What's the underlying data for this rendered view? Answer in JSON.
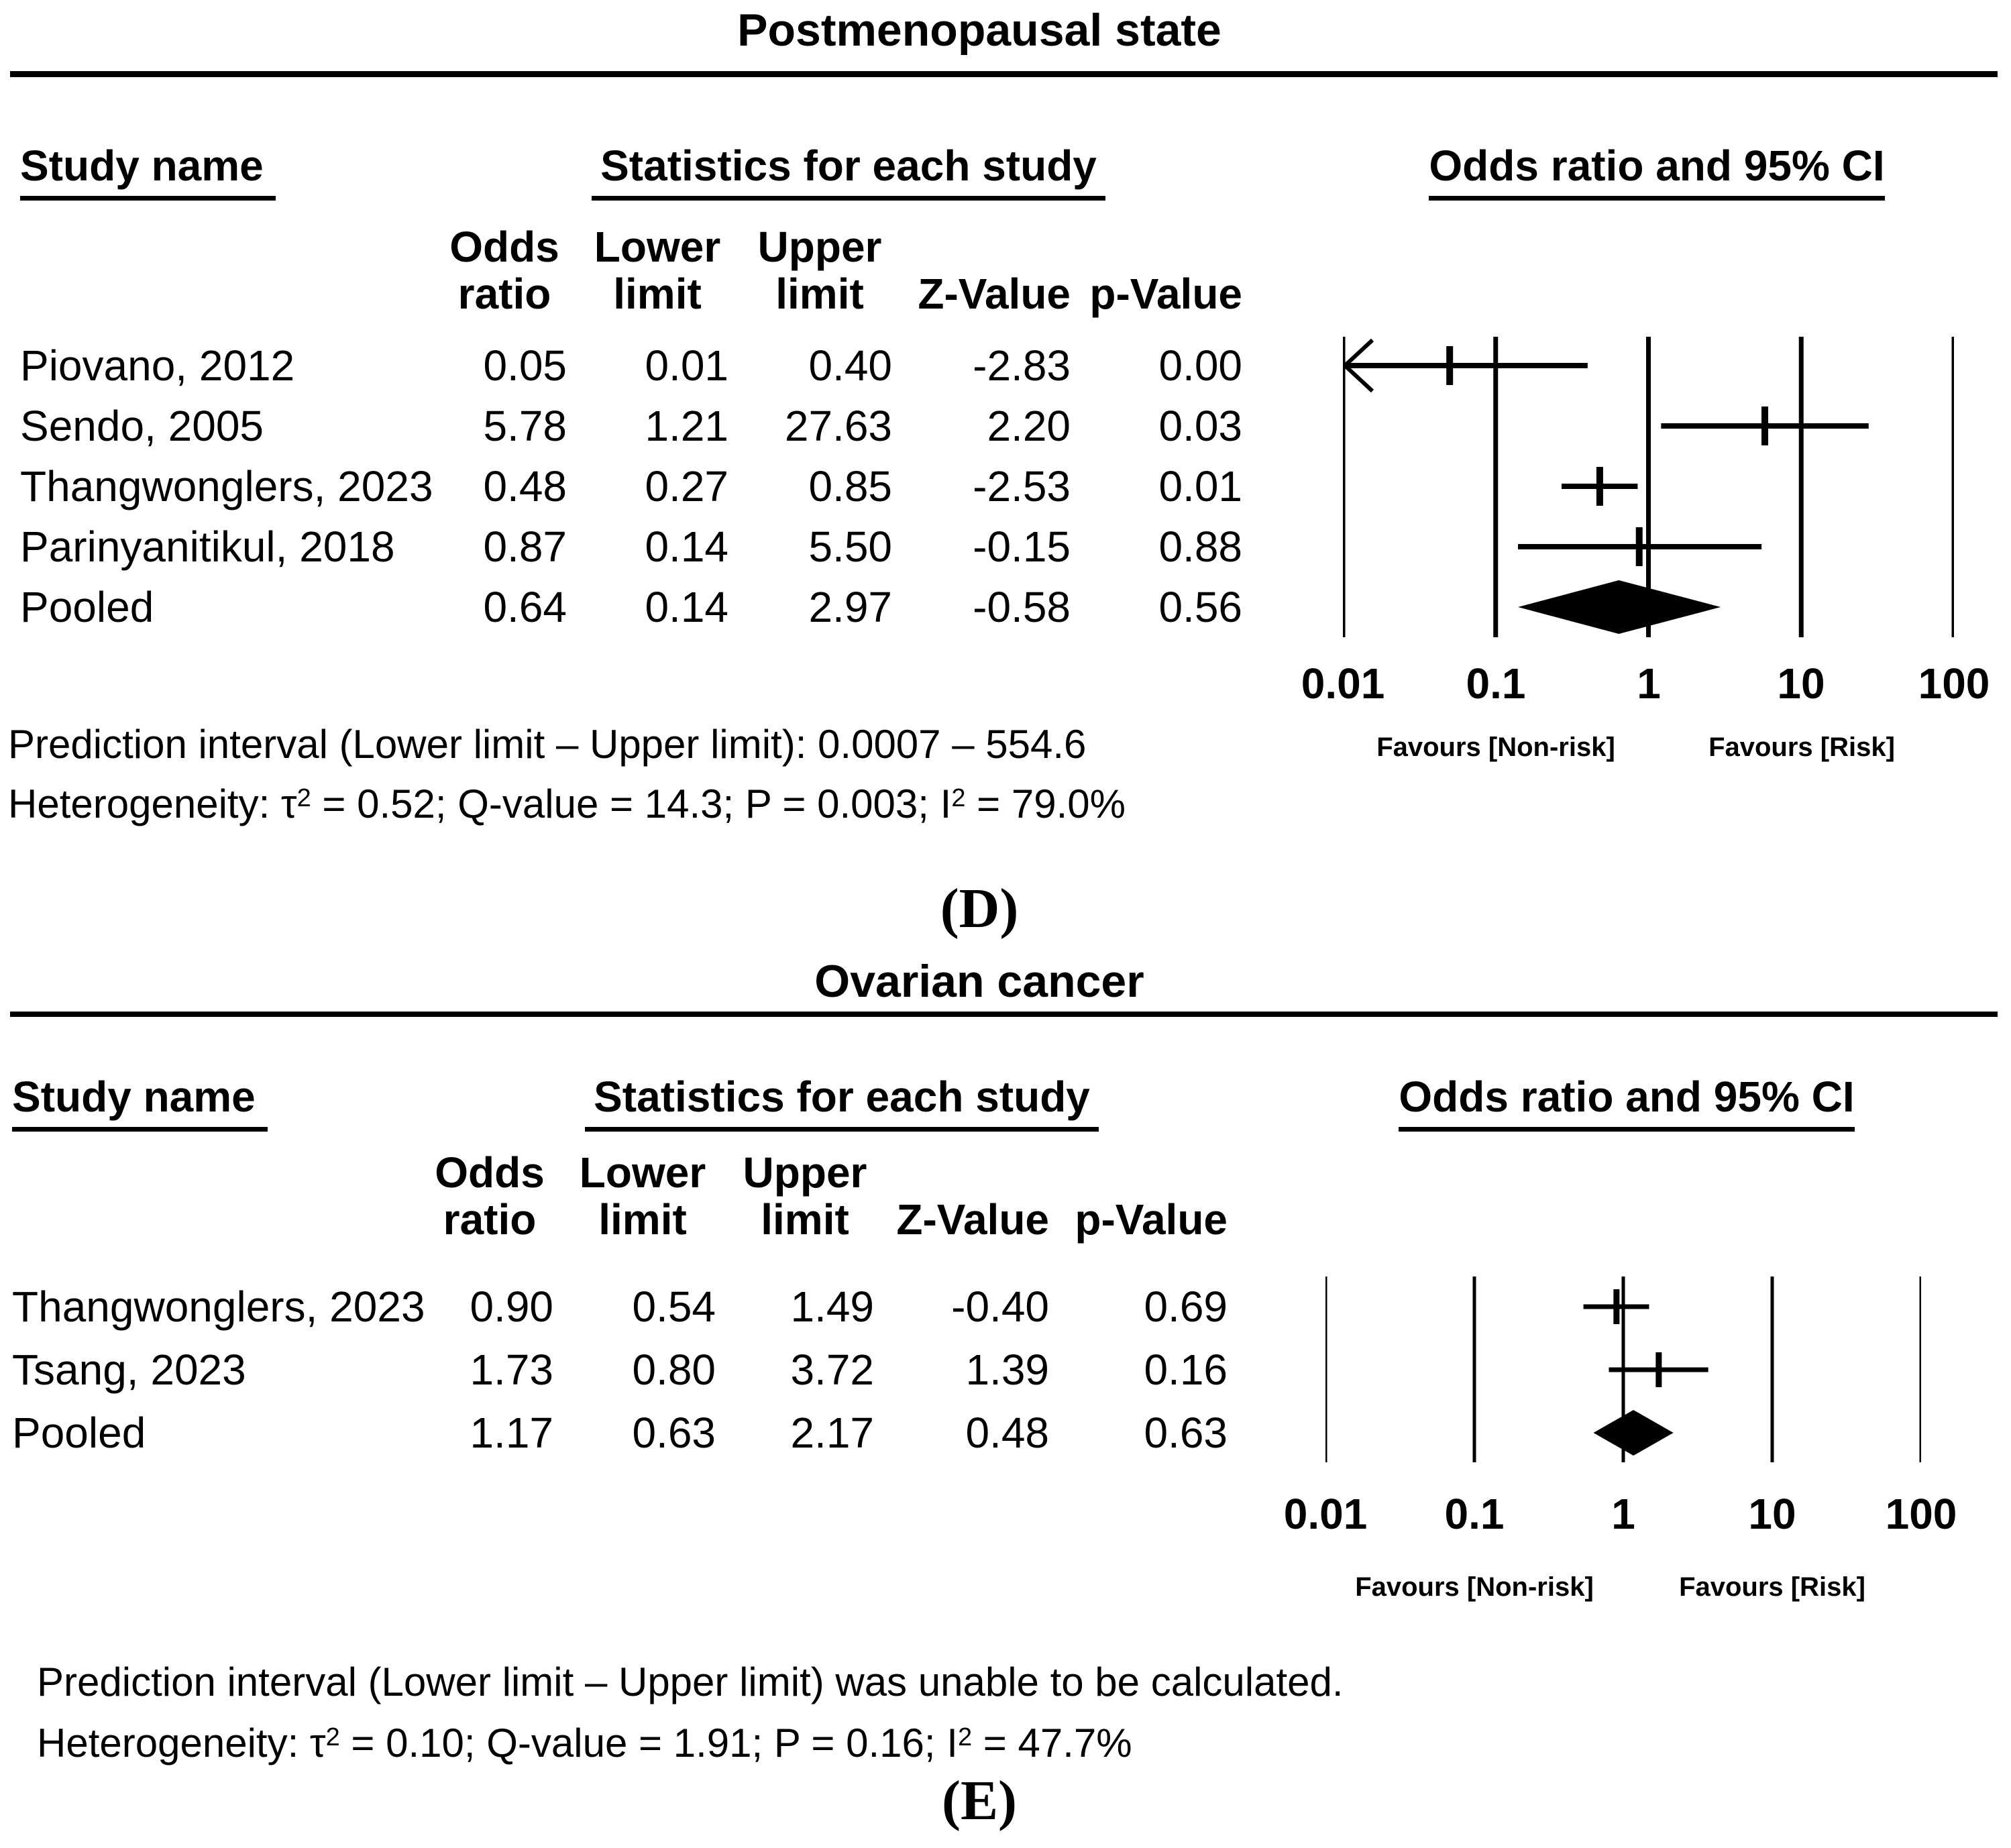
{
  "colors": {
    "ink": "#000000",
    "background": "#ffffff"
  },
  "panels": [
    {
      "title": "Postmenopausal state",
      "headers": {
        "study": "Study name",
        "stats": "Statistics for each study",
        "plot": "Odds ratio and 95% CI"
      },
      "col": {
        "or": "Odds\nratio",
        "lower": "Lower\nlimit",
        "upper": "Upper\nlimit",
        "z": "Z-Value",
        "p": "p-Value"
      },
      "rows": [
        {
          "study": "Piovano, 2012",
          "or": "0.05",
          "lower": "0.01",
          "upper": "0.40",
          "z": "-2.83",
          "p": "0.00"
        },
        {
          "study": "Sendo, 2005",
          "or": "5.78",
          "lower": "1.21",
          "upper": "27.63",
          "z": "2.20",
          "p": "0.03"
        },
        {
          "study": "Thangwonglers, 2023",
          "or": "0.48",
          "lower": "0.27",
          "upper": "0.85",
          "z": "-2.53",
          "p": "0.01"
        },
        {
          "study": "Parinyanitikul, 2018",
          "or": "0.87",
          "lower": "0.14",
          "upper": "5.50",
          "z": "-0.15",
          "p": "0.88"
        },
        {
          "study": "Pooled",
          "or": "0.64",
          "lower": "0.14",
          "upper": "2.97",
          "z": "-0.58",
          "p": "0.56"
        }
      ],
      "axis_ticks": [
        "0.01",
        "0.1",
        "1",
        "10",
        "100"
      ],
      "favours": {
        "left": "Favours [Non-risk]",
        "right": "Favours [Risk]"
      },
      "prediction": "Prediction interval (Lower limit – Upper limit): 0.0007 – 554.6",
      "het": [
        "Heterogeneity: τ",
        "2",
        " = 0.52; Q-value = 14.3; P = 0.003; I",
        "2",
        " = 79.0%"
      ],
      "label": "(D)"
    },
    {
      "title": "Ovarian cancer",
      "headers": {
        "study": "Study name",
        "stats": "Statistics for each study",
        "plot": "Odds ratio and 95% CI"
      },
      "col": {
        "or": "Odds\nratio",
        "lower": "Lower\nlimit",
        "upper": "Upper\nlimit",
        "z": "Z-Value",
        "p": "p-Value"
      },
      "rows": [
        {
          "study": "Thangwonglers, 2023",
          "or": "0.90",
          "lower": "0.54",
          "upper": "1.49",
          "z": "-0.40",
          "p": "0.69"
        },
        {
          "study": "Tsang, 2023",
          "or": "1.73",
          "lower": "0.80",
          "upper": "3.72",
          "z": "1.39",
          "p": "0.16"
        },
        {
          "study": "Pooled",
          "or": "1.17",
          "lower": "0.63",
          "upper": "2.17",
          "z": "0.48",
          "p": "0.63"
        }
      ],
      "axis_ticks": [
        "0.01",
        "0.1",
        "1",
        "10",
        "100"
      ],
      "favours": {
        "left": "Favours [Non-risk]",
        "right": "Favours [Risk]"
      },
      "prediction": "Prediction interval (Lower limit – Upper limit) was unable to be calculated.",
      "het": [
        "Heterogeneity: τ",
        "2",
        " = 0.10; Q-value = 1.91; P = 0.16; I",
        "2",
        " = 47.7%"
      ],
      "label": "(E)"
    }
  ],
  "chart_data": [
    {
      "type": "forest",
      "panel": "D",
      "title": "Postmenopausal state",
      "effect_measure": "Odds ratio",
      "x_axis": {
        "scale": "log",
        "min": 0.01,
        "max": 100,
        "ticks": [
          0.01,
          0.1,
          1,
          10,
          100
        ]
      },
      "studies": [
        {
          "name": "Piovano, 2012",
          "or": 0.05,
          "lower": 0.01,
          "upper": 0.4,
          "z": -2.83,
          "p": 0.0,
          "arrow_low": true
        },
        {
          "name": "Sendo, 2005",
          "or": 5.78,
          "lower": 1.21,
          "upper": 27.63,
          "z": 2.2,
          "p": 0.03,
          "arrow_low": false
        },
        {
          "name": "Thangwonglers, 2023",
          "or": 0.48,
          "lower": 0.27,
          "upper": 0.85,
          "z": -2.53,
          "p": 0.01,
          "arrow_low": false
        },
        {
          "name": "Parinyanitikul, 2018",
          "or": 0.87,
          "lower": 0.14,
          "upper": 5.5,
          "z": -0.15,
          "p": 0.88,
          "arrow_low": false
        }
      ],
      "pooled": {
        "name": "Pooled",
        "or": 0.64,
        "lower": 0.14,
        "upper": 2.97,
        "z": -0.58,
        "p": 0.56
      },
      "prediction_interval": {
        "lower": 0.0007,
        "upper": 554.6
      },
      "heterogeneity": {
        "tau2": 0.52,
        "q_value": 14.3,
        "p": 0.003,
        "i2_percent": 79.0
      }
    },
    {
      "type": "forest",
      "panel": "E",
      "title": "Ovarian cancer",
      "effect_measure": "Odds ratio",
      "x_axis": {
        "scale": "log",
        "min": 0.01,
        "max": 100,
        "ticks": [
          0.01,
          0.1,
          1,
          10,
          100
        ]
      },
      "studies": [
        {
          "name": "Thangwonglers, 2023",
          "or": 0.9,
          "lower": 0.54,
          "upper": 1.49,
          "z": -0.4,
          "p": 0.69,
          "arrow_low": false
        },
        {
          "name": "Tsang, 2023",
          "or": 1.73,
          "lower": 0.8,
          "upper": 3.72,
          "z": 1.39,
          "p": 0.16,
          "arrow_low": false
        }
      ],
      "pooled": {
        "name": "Pooled",
        "or": 1.17,
        "lower": 0.63,
        "upper": 2.17,
        "z": 0.48,
        "p": 0.63
      },
      "prediction_interval": null,
      "heterogeneity": {
        "tau2": 0.1,
        "q_value": 1.91,
        "p": 0.16,
        "i2_percent": 47.7
      }
    }
  ]
}
